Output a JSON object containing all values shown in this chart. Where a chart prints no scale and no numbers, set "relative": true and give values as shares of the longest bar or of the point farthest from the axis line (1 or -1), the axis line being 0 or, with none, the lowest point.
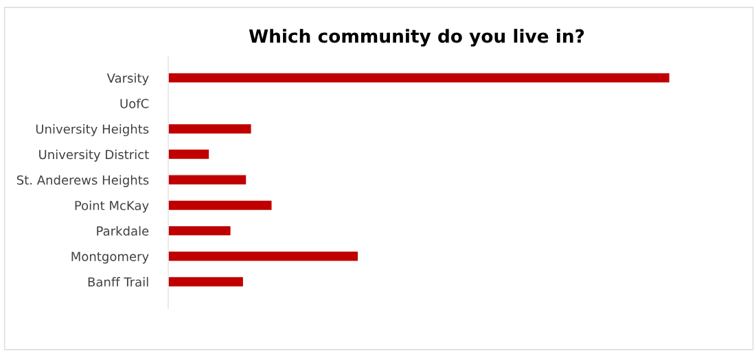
{
  "chart_data": {
    "type": "bar",
    "orientation": "horizontal",
    "relative": true,
    "title": "Which community do you live in?",
    "categories": [
      "Varsity",
      "UofC",
      "University Heights",
      "University District",
      "St. Anderews Heights",
      "Point McKay",
      "Parkdale",
      "Montgomery",
      "Banff Trail"
    ],
    "values": [
      1,
      null,
      0.166,
      0.082,
      0.156,
      0.207,
      0.125,
      0.379,
      0.15
    ],
    "color": "#c00000",
    "grid": false,
    "legend": false
  }
}
